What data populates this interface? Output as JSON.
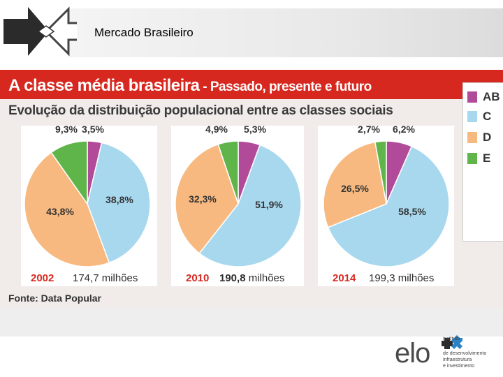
{
  "slide": {
    "title": "Mercado Brasileiro"
  },
  "article": {
    "title": "A classe média brasileira",
    "title_suffix": " - Passado, presente e futuro",
    "subtitle": "Evolução da distribuição populacional entre as classes sociais",
    "source": "Fonte: Data Popular"
  },
  "legend": [
    {
      "label": "AB",
      "color": "#b24a9a"
    },
    {
      "label": "C",
      "color": "#a8d8ee"
    },
    {
      "label": "D",
      "color": "#f7b97f"
    },
    {
      "label": "E",
      "color": "#5fb54a"
    }
  ],
  "chart_data": [
    {
      "type": "pie",
      "year": "2002",
      "population": "174,7",
      "unit": " milhões",
      "population_bold": false,
      "slices": [
        {
          "class": "AB",
          "value": 3.5,
          "label": "3,5%"
        },
        {
          "class": "C",
          "value": 38.8,
          "label": "38,8%"
        },
        {
          "class": "D",
          "value": 43.8,
          "label": "43,8%"
        },
        {
          "class": "E",
          "value": 9.3,
          "label": "9,3%"
        }
      ]
    },
    {
      "type": "pie",
      "year": "2010",
      "population": "190,8",
      "unit": " milhões",
      "population_bold": true,
      "slices": [
        {
          "class": "AB",
          "value": 5.3,
          "label": "5,3%"
        },
        {
          "class": "C",
          "value": 51.9,
          "label": "51,9%"
        },
        {
          "class": "D",
          "value": 32.3,
          "label": "32,3%"
        },
        {
          "class": "E",
          "value": 4.9,
          "label": "4,9%"
        }
      ]
    },
    {
      "type": "pie",
      "year": "2014",
      "population": "199,3",
      "unit": " milhões",
      "population_bold": false,
      "slices": [
        {
          "class": "AB",
          "value": 6.2,
          "label": "6,2%"
        },
        {
          "class": "C",
          "value": 58.5,
          "label": "58,5%"
        },
        {
          "class": "D",
          "value": 26.5,
          "label": "26,5%"
        },
        {
          "class": "E",
          "value": 2.7,
          "label": "2,7%"
        }
      ]
    }
  ],
  "footer_logo": {
    "word": "elo",
    "lines": [
      "instituto",
      "de desenvolvimento",
      "infraestrutura",
      "e investimento"
    ]
  }
}
